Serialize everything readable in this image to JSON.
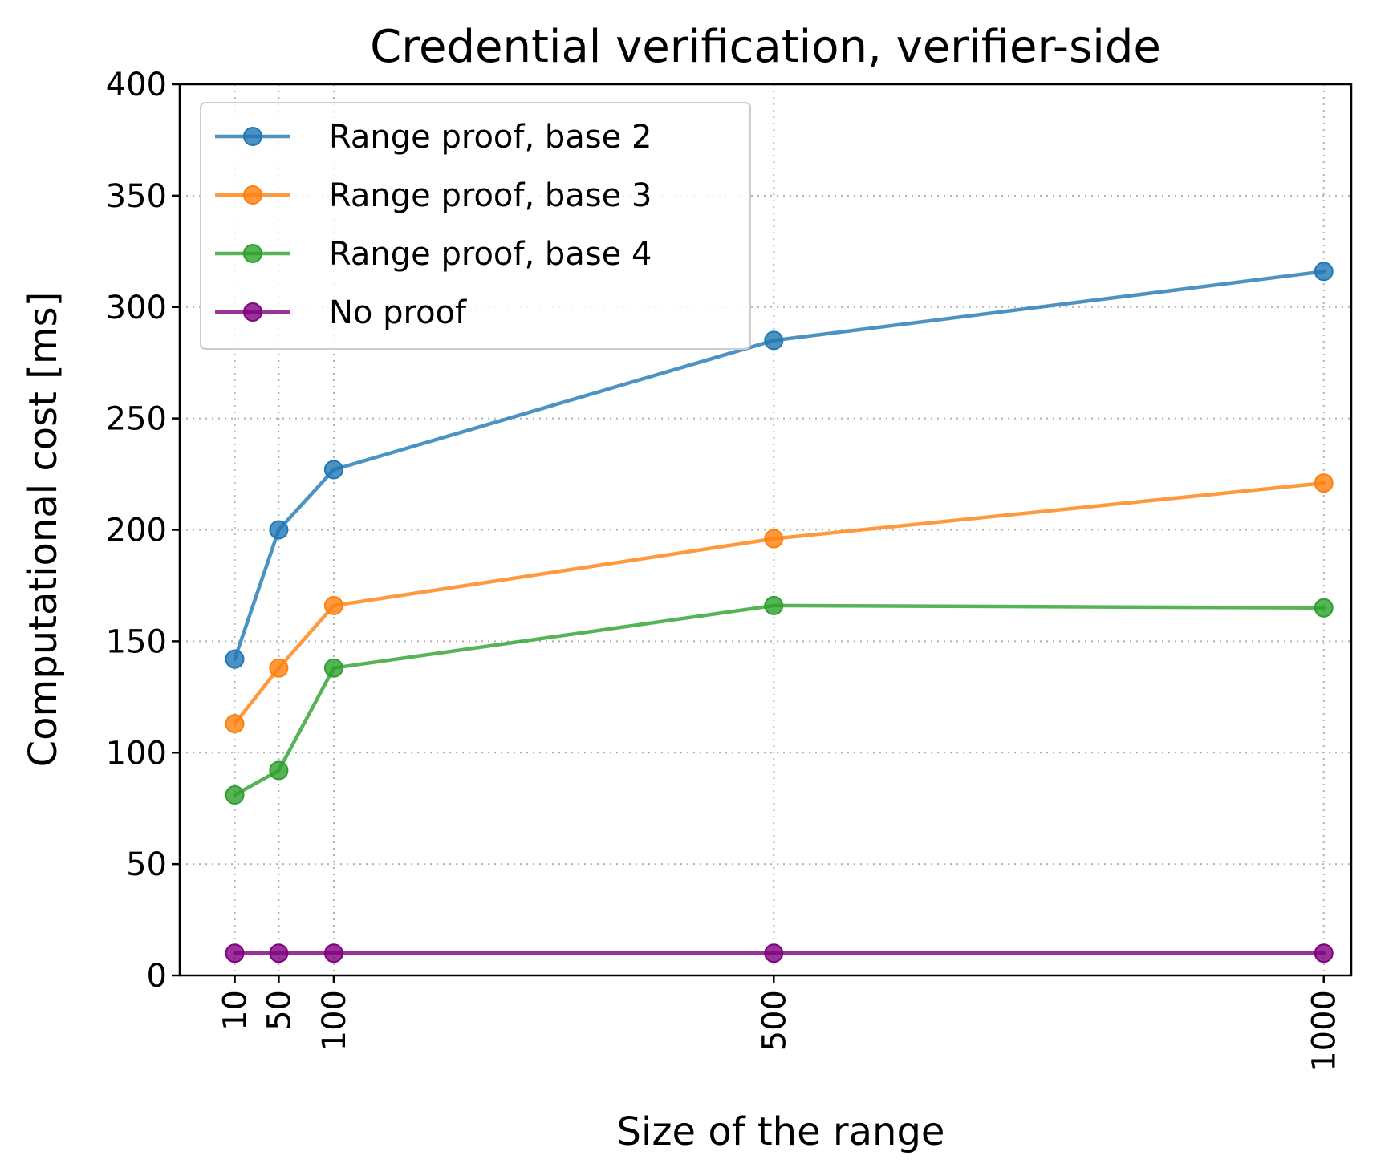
{
  "chart_data": {
    "type": "line",
    "title": "Credential verification, verifier-side",
    "xlabel": "Size of the range",
    "ylabel": "Computational cost [ms]",
    "x": [
      10,
      50,
      100,
      500,
      1000
    ],
    "x_tick_labels": [
      "10",
      "50",
      "100",
      "500",
      "1000"
    ],
    "x_tick_rotation": "vertical",
    "xlim": [
      -40,
      1025
    ],
    "ylim": [
      0,
      400
    ],
    "y_ticks": [
      0,
      50,
      100,
      150,
      200,
      250,
      300,
      350,
      400
    ],
    "y_tick_labels": [
      "0",
      "50",
      "100",
      "150",
      "200",
      "250",
      "300",
      "350",
      "400"
    ],
    "grid": true,
    "legend_position": "upper left",
    "series": [
      {
        "name": "Range proof, base 2",
        "color": "#1f77b4",
        "values": [
          142,
          200,
          227,
          285,
          316
        ]
      },
      {
        "name": "Range proof, base 3",
        "color": "#ff7f0e",
        "values": [
          113,
          138,
          166,
          196,
          221
        ]
      },
      {
        "name": "Range proof, base 4",
        "color": "#2ca02c",
        "values": [
          81,
          92,
          138,
          166,
          165
        ]
      },
      {
        "name": "No proof",
        "color": "#800080",
        "values": [
          10,
          10,
          10,
          10,
          10
        ]
      }
    ]
  }
}
